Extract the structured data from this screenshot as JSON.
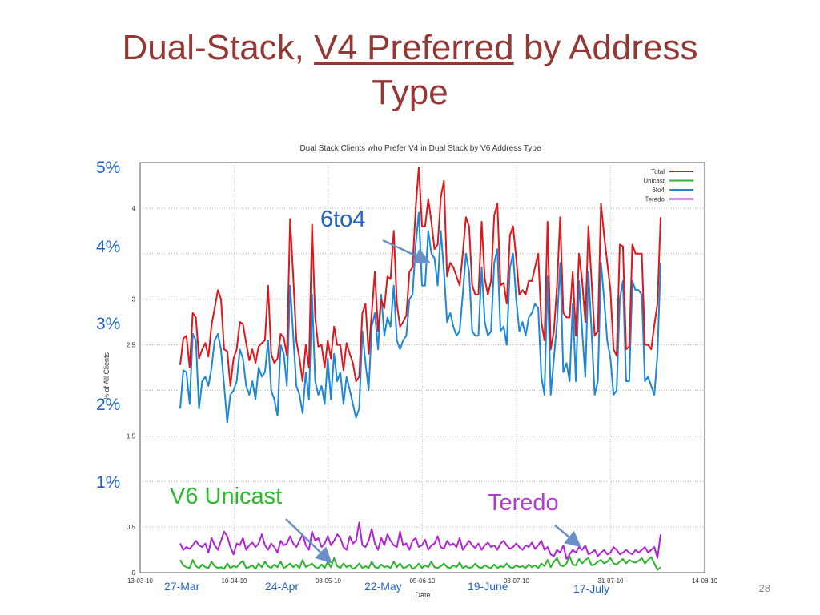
{
  "slide": {
    "title_part1": "Dual-Stack, ",
    "title_underlined": "V4 Preferred",
    "title_part2": " by Address",
    "title_line2": "Type",
    "page_number": "28"
  },
  "annotations": {
    "sixto4": "6to4",
    "unicast": "V6 Unicast",
    "teredo": "Teredo",
    "colors": {
      "sixto4": "#1f63c9",
      "unicast": "#2db82d",
      "teredo": "#b23ad8"
    }
  },
  "overlay_percent_labels": [
    "5%",
    "4%",
    "3%",
    "2%",
    "1%"
  ],
  "overlay_date_labels": [
    "27-Mar",
    "24-Apr",
    "22-May",
    "19-June",
    "17-July"
  ],
  "chart_data": {
    "type": "line",
    "title": "Dual Stack Clients who Prefer V4 in Dual Stack by V6 Address Type",
    "xlabel": "Date",
    "ylabel": "% of All Clients",
    "ylim": [
      0,
      4.5
    ],
    "yticks": [
      "0",
      "0.5",
      "1",
      "1.5",
      "2",
      "2.5",
      "3",
      "3.5",
      "4"
    ],
    "yticks_printed": [
      "0",
      "0.5",
      "",
      "1.5",
      "",
      "2.5",
      "3",
      "",
      "4"
    ],
    "xticks": [
      "13-03-10",
      "10-04-10",
      "08-05-10",
      "05-06-10",
      "03-07-10",
      "31-07-10",
      "14-08-10"
    ],
    "x_start_day": 0,
    "x_end_day": 154,
    "grid": true,
    "legend_position": "top-right",
    "series": [
      {
        "name": "Total",
        "color": "#e0161b",
        "values": [
          2.28,
          2.57,
          2.6,
          2.25,
          2.85,
          2.8,
          2.35,
          2.45,
          2.52,
          2.37,
          2.72,
          2.9,
          3.1,
          3.0,
          2.45,
          2.43,
          2.05,
          2.35,
          2.45,
          2.75,
          2.73,
          2.52,
          2.33,
          2.45,
          2.3,
          2.48,
          2.52,
          2.55,
          3.15,
          2.4,
          2.3,
          2.35,
          2.62,
          2.58,
          2.38,
          3.88,
          3.25,
          2.55,
          2.35,
          2.1,
          2.5,
          2.25,
          3.82,
          2.8,
          2.48,
          2.5,
          2.25,
          2.55,
          2.35,
          2.7,
          2.5,
          2.5,
          2.22,
          2.52,
          2.4,
          2.3,
          2.1,
          2.15,
          2.85,
          2.95,
          2.4,
          2.85,
          3.3,
          2.65,
          3.0,
          2.9,
          3.25,
          3.22,
          3.75,
          2.95,
          2.7,
          2.75,
          2.82,
          3.3,
          3.35,
          4.0,
          4.45,
          3.8,
          3.8,
          4.1,
          3.85,
          3.55,
          3.6,
          4.12,
          4.3,
          3.25,
          3.4,
          3.35,
          3.25,
          3.15,
          3.5,
          3.9,
          3.8,
          3.15,
          3.05,
          3.05,
          3.85,
          3.22,
          3.05,
          3.2,
          3.92,
          4.05,
          3.15,
          3.18,
          2.95,
          3.7,
          3.8,
          3.45,
          3.05,
          3.1,
          3.05,
          3.2,
          3.2,
          3.35,
          3.5,
          2.75,
          2.55,
          3.85,
          2.45,
          2.65,
          3.15,
          3.9,
          2.85,
          2.8,
          2.8,
          3.3,
          2.6,
          3.5,
          3.2,
          2.75,
          3.8,
          3.2,
          2.6,
          2.65,
          4.05,
          3.7,
          3.4,
          3.1,
          2.45,
          2.38,
          3.6,
          3.58,
          2.45,
          2.48,
          3.6,
          3.5,
          3.5,
          3.5,
          2.5,
          2.5,
          2.45,
          2.72,
          2.95,
          3.9
        ]
      },
      {
        "name": "Unicast",
        "color": "#2ab52a",
        "values": [
          0.14,
          0.08,
          0.06,
          0.05,
          0.14,
          0.07,
          0.05,
          0.09,
          0.06,
          0.05,
          0.12,
          0.07,
          0.05,
          0.06,
          0.04,
          0.1,
          0.05,
          0.07,
          0.06,
          0.1,
          0.13,
          0.05,
          0.06,
          0.08,
          0.04,
          0.1,
          0.06,
          0.12,
          0.07,
          0.05,
          0.09,
          0.06,
          0.12,
          0.05,
          0.07,
          0.1,
          0.06,
          0.09,
          0.05,
          0.14,
          0.06,
          0.08,
          0.1,
          0.06,
          0.05,
          0.09,
          0.05,
          0.12,
          0.06,
          0.16,
          0.07,
          0.05,
          0.1,
          0.06,
          0.08,
          0.04,
          0.06,
          0.1,
          0.05,
          0.07,
          0.05,
          0.12,
          0.06,
          0.05,
          0.09,
          0.06,
          0.07,
          0.05,
          0.12,
          0.06,
          0.1,
          0.05,
          0.06,
          0.09,
          0.04,
          0.06,
          0.1,
          0.05,
          0.08,
          0.06,
          0.12,
          0.06,
          0.05,
          0.07,
          0.1,
          0.06,
          0.05,
          0.08,
          0.06,
          0.11,
          0.05,
          0.07,
          0.05,
          0.06,
          0.1,
          0.06,
          0.05,
          0.08,
          0.06,
          0.05,
          0.09,
          0.05,
          0.07,
          0.06,
          0.1,
          0.06,
          0.05,
          0.08,
          0.06,
          0.07,
          0.05,
          0.09,
          0.06,
          0.08,
          0.05,
          0.1,
          0.07,
          0.14,
          0.06,
          0.12,
          0.16,
          0.08,
          0.07,
          0.1,
          0.18,
          0.09,
          0.08,
          0.15,
          0.1,
          0.14,
          0.16,
          0.08,
          0.09,
          0.12,
          0.14,
          0.1,
          0.12,
          0.16,
          0.1,
          0.09,
          0.12,
          0.15,
          0.1,
          0.14,
          0.12,
          0.11,
          0.13,
          0.16,
          0.1,
          0.14,
          0.17,
          0.1,
          0.03,
          0.06
        ]
      },
      {
        "name": "6to4",
        "color": "#1a87da",
        "values": [
          1.8,
          2.22,
          2.2,
          1.85,
          2.62,
          2.55,
          1.8,
          2.1,
          2.15,
          2.05,
          2.25,
          2.55,
          2.62,
          2.45,
          2.05,
          1.65,
          1.95,
          2.0,
          2.1,
          2.45,
          2.35,
          2.05,
          1.95,
          2.1,
          1.9,
          2.25,
          2.15,
          2.2,
          2.55,
          2.0,
          1.9,
          1.72,
          2.5,
          2.4,
          2.05,
          3.15,
          2.6,
          2.05,
          1.95,
          1.75,
          2.2,
          1.9,
          3.05,
          2.1,
          1.95,
          2.05,
          1.85,
          2.35,
          1.9,
          2.4,
          2.1,
          2.2,
          1.85,
          2.15,
          2.0,
          1.85,
          1.7,
          1.8,
          2.65,
          2.3,
          2.0,
          2.7,
          2.85,
          2.45,
          3.05,
          2.6,
          2.8,
          2.7,
          3.15,
          2.55,
          2.45,
          2.55,
          2.6,
          3.0,
          3.05,
          3.6,
          3.95,
          3.15,
          3.15,
          3.75,
          3.5,
          3.45,
          3.15,
          3.75,
          3.3,
          2.75,
          2.85,
          2.7,
          2.6,
          2.65,
          3.05,
          3.5,
          3.3,
          2.65,
          2.6,
          2.6,
          3.35,
          2.75,
          2.6,
          2.65,
          3.4,
          3.55,
          2.65,
          2.7,
          2.5,
          3.35,
          3.5,
          3.0,
          2.65,
          2.75,
          2.6,
          2.8,
          2.85,
          2.95,
          2.9,
          2.15,
          1.95,
          3.25,
          1.95,
          2.35,
          2.75,
          3.4,
          2.2,
          2.3,
          2.1,
          2.95,
          2.1,
          3.2,
          2.65,
          2.15,
          3.3,
          2.65,
          1.95,
          2.1,
          3.4,
          3.0,
          2.55,
          2.35,
          1.95,
          2.0,
          3.0,
          3.2,
          2.1,
          2.1,
          3.2,
          3.1,
          3.1,
          3.05,
          2.1,
          2.15,
          2.05,
          1.95,
          2.4,
          3.4
        ]
      },
      {
        "name": "Teredo",
        "color": "#b122d6",
        "values": [
          0.32,
          0.25,
          0.28,
          0.26,
          0.3,
          0.35,
          0.3,
          0.28,
          0.32,
          0.22,
          0.38,
          0.3,
          0.25,
          0.35,
          0.45,
          0.4,
          0.28,
          0.2,
          0.32,
          0.3,
          0.38,
          0.25,
          0.3,
          0.33,
          0.28,
          0.32,
          0.42,
          0.3,
          0.25,
          0.32,
          0.28,
          0.22,
          0.35,
          0.3,
          0.32,
          0.4,
          0.32,
          0.28,
          0.35,
          0.42,
          0.3,
          0.25,
          0.45,
          0.35,
          0.38,
          0.28,
          0.32,
          0.4,
          0.3,
          0.35,
          0.42,
          0.38,
          0.28,
          0.25,
          0.4,
          0.32,
          0.35,
          0.55,
          0.3,
          0.28,
          0.35,
          0.48,
          0.32,
          0.25,
          0.38,
          0.3,
          0.42,
          0.35,
          0.3,
          0.28,
          0.45,
          0.3,
          0.32,
          0.25,
          0.35,
          0.38,
          0.28,
          0.3,
          0.36,
          0.25,
          0.3,
          0.32,
          0.4,
          0.28,
          0.26,
          0.35,
          0.3,
          0.32,
          0.28,
          0.38,
          0.25,
          0.3,
          0.35,
          0.3,
          0.27,
          0.32,
          0.25,
          0.3,
          0.33,
          0.28,
          0.3,
          0.25,
          0.32,
          0.35,
          0.3,
          0.26,
          0.28,
          0.32,
          0.28,
          0.25,
          0.3,
          0.28,
          0.33,
          0.26,
          0.3,
          0.35,
          0.25,
          0.28,
          0.2,
          0.18,
          0.25,
          0.22,
          0.3,
          0.15,
          0.2,
          0.25,
          0.22,
          0.28,
          0.25,
          0.3,
          0.2,
          0.22,
          0.25,
          0.18,
          0.22,
          0.25,
          0.2,
          0.22,
          0.28,
          0.25,
          0.2,
          0.22,
          0.25,
          0.22,
          0.2,
          0.25,
          0.22,
          0.25,
          0.28,
          0.22,
          0.25,
          0.28,
          0.16,
          0.42
        ]
      }
    ]
  }
}
